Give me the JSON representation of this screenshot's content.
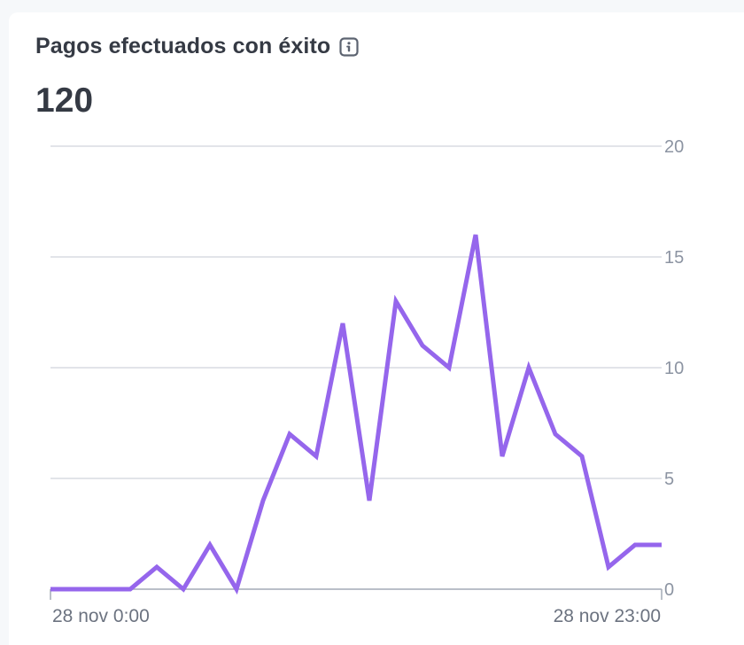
{
  "card": {
    "title": "Pagos efectuados con éxito",
    "info_icon": "info-icon",
    "total": "120"
  },
  "colors": {
    "line": "#9566ec",
    "grid": "#d8dce2",
    "axis": "#a3aab5"
  },
  "chart_data": {
    "type": "line",
    "title": "Pagos efectuados con éxito",
    "xlabel": "",
    "ylabel": "",
    "y_axis_position": "right",
    "ylim": [
      0,
      20
    ],
    "yticks": [
      0,
      5,
      10,
      15,
      20
    ],
    "x_tick_labels": [
      "28 nov 0:00",
      "28 nov 23:00"
    ],
    "x": [
      "0:00",
      "1:00",
      "2:00",
      "3:00",
      "4:00",
      "5:00",
      "6:00",
      "7:00",
      "8:00",
      "9:00",
      "10:00",
      "11:00",
      "12:00",
      "13:00",
      "14:00",
      "15:00",
      "16:00",
      "17:00",
      "18:00",
      "19:00",
      "20:00",
      "21:00",
      "22:00",
      "23:00"
    ],
    "series": [
      {
        "values": [
          0,
          0,
          0,
          0,
          1,
          0,
          2,
          0,
          4,
          7,
          6,
          12,
          4,
          13,
          11,
          10,
          16,
          6,
          10,
          7,
          6,
          1,
          2,
          2
        ]
      }
    ],
    "grid": true
  }
}
